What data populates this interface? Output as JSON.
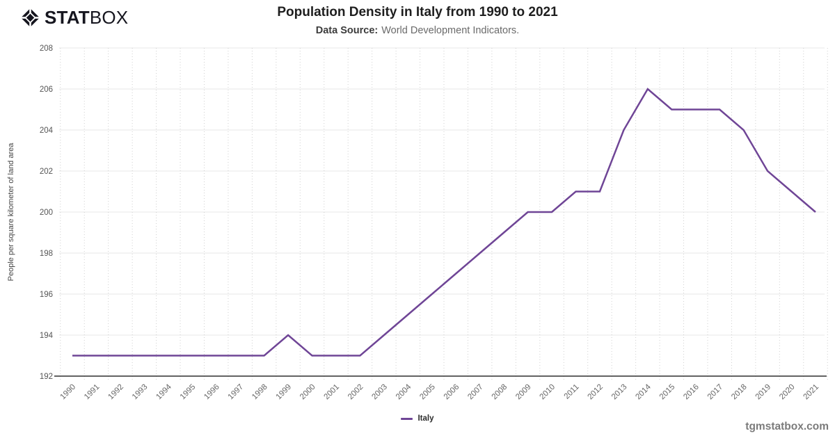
{
  "brand": {
    "stat": "STAT",
    "box": "BOX"
  },
  "header": {
    "title": "Population Density in Italy from 1990 to 2021",
    "subtitle_label": "Data Source:",
    "subtitle_rest": "World Development Indicators."
  },
  "legend": {
    "label": "Italy"
  },
  "watermark": "tgmstatbox.com",
  "colors": {
    "accent_line": "#6f4596",
    "logo": "#16161f",
    "axis_line": "#2e2e2e",
    "grid_h": "#e7e7e7",
    "grid_v_dots": "#cfcfcf",
    "tick_text": "#666666",
    "ytick_text": "#555555",
    "axis_title_text": "#444444"
  },
  "chart_data": {
    "type": "line",
    "title": "Population Density in Italy from 1990 to 2021",
    "subtitle": "Data Source: World Development Indicators.",
    "x": [
      1990,
      1991,
      1992,
      1993,
      1994,
      1995,
      1996,
      1997,
      1998,
      1999,
      2000,
      2001,
      2002,
      2003,
      2004,
      2005,
      2006,
      2007,
      2008,
      2009,
      2010,
      2011,
      2012,
      2013,
      2014,
      2015,
      2016,
      2017,
      2018,
      2019,
      2020,
      2021
    ],
    "series": [
      {
        "name": "Italy",
        "color": "#6f4596",
        "values": [
          193,
          193,
          193,
          193,
          193,
          193,
          193,
          193,
          193,
          194,
          193,
          193,
          193,
          194,
          195,
          196,
          197,
          198,
          199,
          200,
          200,
          201,
          201,
          204,
          206,
          205,
          205,
          205,
          204,
          202,
          201,
          200
        ]
      }
    ],
    "xlabel": "",
    "ylabel": "People per square kilometer of land area",
    "ylim": [
      192,
      208
    ],
    "ytick_step": 2,
    "grid": true,
    "legend_position": "bottom"
  }
}
